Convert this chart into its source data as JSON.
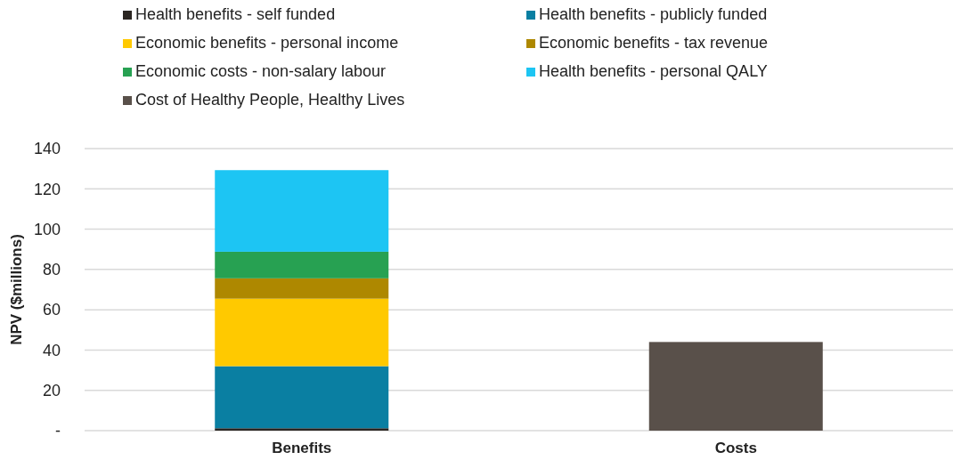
{
  "chart_data": {
    "type": "bar",
    "stacked": true,
    "ylabel": "NPV ($millions)",
    "categories": [
      "Benefits",
      "Costs"
    ],
    "series": [
      {
        "name": "Health benefits - self funded",
        "color": "#2b2622",
        "values": [
          1.2,
          null
        ]
      },
      {
        "name": "Health benefits - publicly funded",
        "color": "#0a7fa2",
        "values": [
          30.8,
          null
        ]
      },
      {
        "name": "Economic benefits - personal income",
        "color": "#ffc900",
        "values": [
          33.5,
          null
        ]
      },
      {
        "name": "Economic benefits - tax revenue",
        "color": "#ae8800",
        "values": [
          10.1,
          null
        ]
      },
      {
        "name": "Economic costs - non-salary labour",
        "color": "#27a152",
        "values": [
          13.2,
          null
        ]
      },
      {
        "name": "Health benefits - personal QALY",
        "color": "#1dc5f3",
        "values": [
          40.5,
          null
        ]
      },
      {
        "name": "Cost of Healthy People, Healthy Lives",
        "color": "#59504a",
        "values": [
          null,
          44
        ]
      }
    ],
    "ylim": [
      0,
      140
    ],
    "yticks": [
      {
        "value": 0,
        "label": "-"
      },
      20,
      40,
      60,
      80,
      100,
      120,
      140
    ],
    "grid": "y",
    "legend": "top"
  }
}
